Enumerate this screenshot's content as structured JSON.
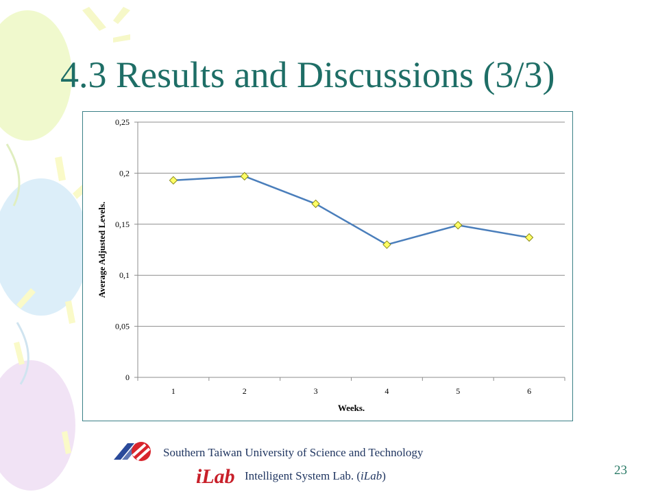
{
  "slide": {
    "title": "4.3 Results and Discussions (3/3)",
    "page_number": "23"
  },
  "footer": {
    "university": "Southern Taiwan University of Science and Technology",
    "lab_name": "Intelligent System Lab. (",
    "lab_abbr": "iLab",
    "lab_close": ")",
    "lab_logo_text": "iLab"
  },
  "colors": {
    "title": "#1e6e66",
    "line": "#4a7ebb",
    "marker_fill": "#ffff66",
    "marker_stroke": "#8a8a1a",
    "footer_text": "#1f3560"
  },
  "chart_data": {
    "type": "line",
    "xlabel": "Weeks.",
    "ylabel": "Average Adjusted Levels.",
    "categories": [
      "1",
      "2",
      "3",
      "4",
      "5",
      "6"
    ],
    "values": [
      0.193,
      0.197,
      0.17,
      0.13,
      0.149,
      0.137
    ],
    "ylim": [
      0,
      0.25
    ],
    "yticks": [
      0,
      0.05,
      0.1,
      0.15,
      0.2,
      0.25
    ],
    "ytick_labels": [
      "0",
      "0,05",
      "0,1",
      "0,15",
      "0,2",
      "0,25"
    ],
    "grid": "horizontal",
    "marker": "diamond"
  }
}
